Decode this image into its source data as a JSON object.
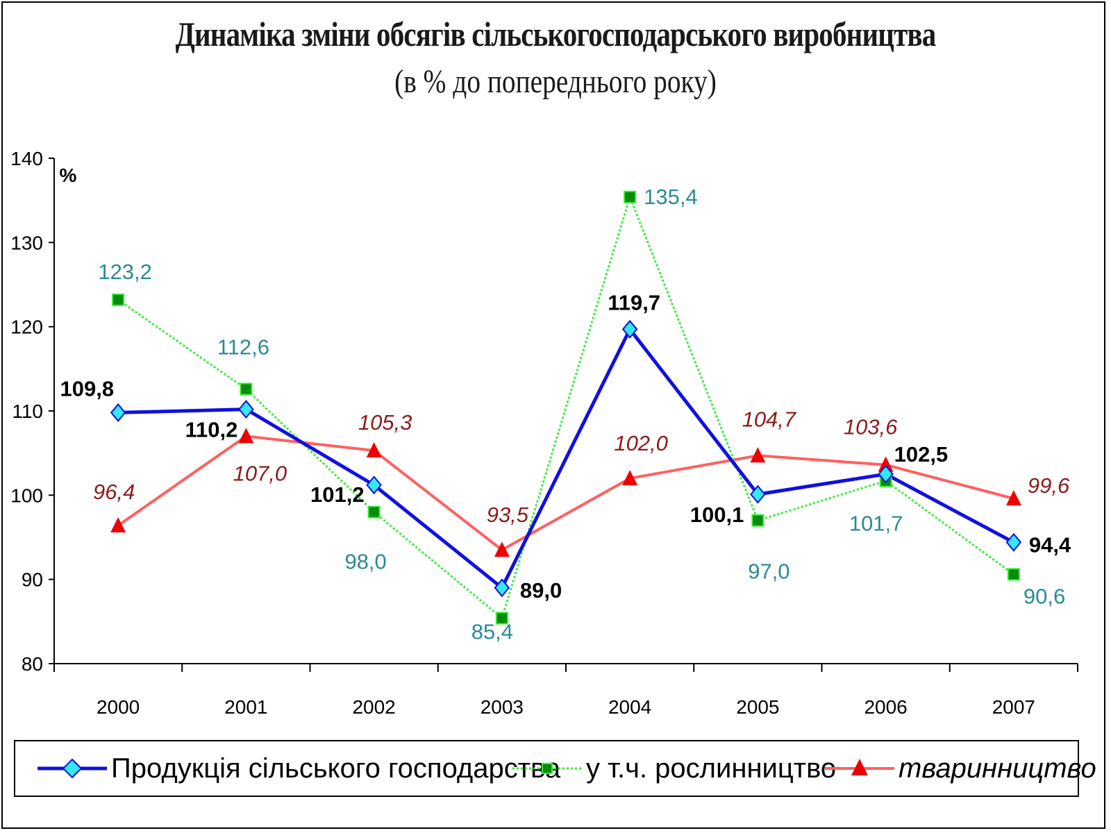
{
  "title": "Динаміка зміни обсягів сільськогосподарського виробництва",
  "subtitle": "(в % до попереднього року)",
  "colors": {
    "total": "#1010e0",
    "crop": "#33ee33",
    "livestock": "#ff6060",
    "total_marker": "#33e8f0",
    "crop_marker": "#0a8a0a",
    "livestock_marker": "#ee0000"
  },
  "chart_data": {
    "type": "line",
    "title": "Динаміка зміни обсягів сільськогосподарського виробництва",
    "subtitle": "(в % до попереднього року)",
    "ylabel": "%",
    "xlabel": "",
    "ylim": [
      80,
      140
    ],
    "yticks": [
      "80",
      "90",
      "100",
      "110",
      "120",
      "130",
      "140"
    ],
    "categories": [
      "2000",
      "2001",
      "2002",
      "2003",
      "2004",
      "2005",
      "2006",
      "2007"
    ],
    "legend_position": "bottom",
    "series": [
      {
        "name": "Продукція сільського господарства",
        "values": [
          109.8,
          110.2,
          101.2,
          89.0,
          119.7,
          100.1,
          102.5,
          94.4
        ],
        "labels": [
          "109,8",
          "110,2",
          "101,2",
          "89,0",
          "119,7",
          "100,1",
          "102,5",
          "94,4"
        ]
      },
      {
        "name": "у т.ч. рослинництво",
        "values": [
          123.2,
          112.6,
          98.0,
          85.4,
          135.4,
          97.0,
          101.7,
          90.6
        ],
        "labels": [
          "123,2",
          "112,6",
          "98,0",
          "85,4",
          "135,4",
          "97,0",
          "101,7",
          "90,6"
        ]
      },
      {
        "name": "тваринництво",
        "values": [
          96.4,
          107.0,
          105.3,
          93.5,
          102.0,
          104.7,
          103.6,
          99.6
        ],
        "labels": [
          "96,4",
          "107,0",
          "105,3",
          "93,5",
          "102,0",
          "104,7",
          "103,6",
          "99,6"
        ]
      }
    ]
  },
  "legend": {
    "total": "Продукція сільського господарства",
    "crop": "у т.ч. рослинництво",
    "livestock": "тваринництво"
  }
}
